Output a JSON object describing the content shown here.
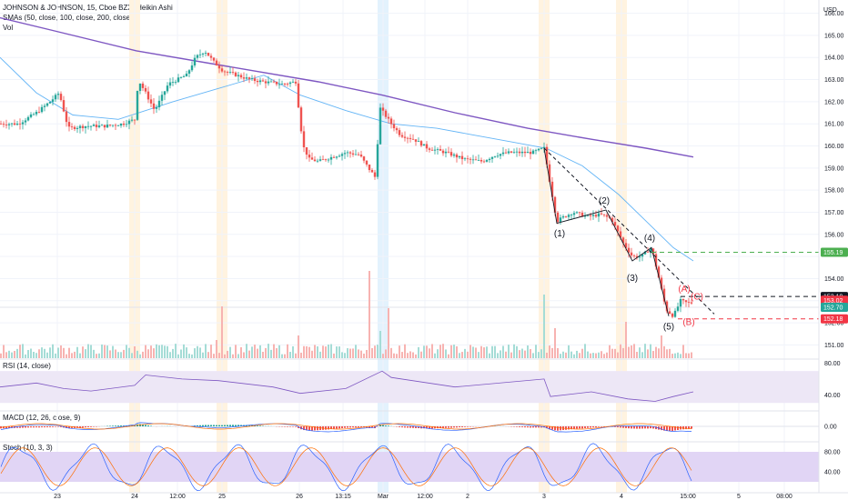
{
  "header": {
    "title": "JOHNSON & JOHNSON, 15, Cboe BZX, Heikin Ashi",
    "sma": "SMAs (50, close, 100, close, 200, close)",
    "vol": "Vol"
  },
  "currency": "USD",
  "indicators": {
    "rsi": "RSI (14, close)",
    "macd": "MACD (12, 26, close, 9)",
    "stoch": "Stoch (10, 3, 3)"
  },
  "colors": {
    "up": "#26a69a",
    "down": "#ef5350",
    "sma200": "#7e57c2",
    "sma50": "#64b5f6",
    "session_highlight": "#fff3e0",
    "rsi_band": "#ede7f6",
    "target": "#4caf50",
    "stop": "#f23645"
  },
  "chart_data": [
    {
      "type": "candlestick",
      "style": "Heikin Ashi",
      "ylim": [
        150.4,
        166.6
      ],
      "yticks": [
        151.0,
        152.0,
        153.0,
        154.0,
        155.0,
        156.0,
        157.0,
        158.0,
        159.0,
        160.0,
        161.0,
        162.0,
        163.0,
        164.0,
        165.0,
        166.0
      ],
      "xticks": [
        {
          "label": "23",
          "t": 63
        },
        {
          "label": "24",
          "t": 148
        },
        {
          "label": "12:00",
          "t": 195
        },
        {
          "label": "25",
          "t": 244
        },
        {
          "label": "26",
          "t": 329
        },
        {
          "label": "13:15",
          "t": 377
        },
        {
          "label": "Mar",
          "t": 421
        },
        {
          "label": "12:00",
          "t": 467
        },
        {
          "label": "2",
          "t": 514
        },
        {
          "label": "3",
          "t": 598
        },
        {
          "label": "4",
          "t": 683
        },
        {
          "label": "15:00",
          "t": 756
        },
        {
          "label": "5",
          "t": 812
        },
        {
          "label": "08:00",
          "t": 862
        }
      ],
      "close_anchors": [
        [
          0,
          161.0
        ],
        [
          20,
          161.0
        ],
        [
          40,
          161.5
        ],
        [
          55,
          162.0
        ],
        [
          65,
          162.4
        ],
        [
          75,
          160.8
        ],
        [
          95,
          160.9
        ],
        [
          115,
          160.9
        ],
        [
          135,
          161.0
        ],
        [
          148,
          161.2
        ],
        [
          152,
          163.0
        ],
        [
          160,
          162.4
        ],
        [
          170,
          161.6
        ],
        [
          185,
          162.8
        ],
        [
          205,
          163.2
        ],
        [
          215,
          164.0
        ],
        [
          225,
          164.3
        ],
        [
          235,
          163.8
        ],
        [
          245,
          163.4
        ],
        [
          260,
          163.2
        ],
        [
          275,
          163.0
        ],
        [
          290,
          162.9
        ],
        [
          310,
          162.8
        ],
        [
          325,
          162.9
        ],
        [
          333,
          160.0
        ],
        [
          340,
          159.4
        ],
        [
          350,
          159.3
        ],
        [
          365,
          159.5
        ],
        [
          380,
          159.7
        ],
        [
          395,
          159.6
        ],
        [
          405,
          159.0
        ],
        [
          412,
          158.6
        ],
        [
          418,
          161.7
        ],
        [
          430,
          161.0
        ],
        [
          440,
          160.5
        ],
        [
          455,
          160.3
        ],
        [
          470,
          159.9
        ],
        [
          490,
          159.7
        ],
        [
          510,
          159.4
        ],
        [
          530,
          159.3
        ],
        [
          545,
          159.6
        ],
        [
          560,
          159.7
        ],
        [
          585,
          159.7
        ],
        [
          598,
          159.9
        ],
        [
          605,
          158.2
        ],
        [
          612,
          156.6
        ],
        [
          620,
          156.8
        ],
        [
          630,
          157.0
        ],
        [
          645,
          156.8
        ],
        [
          660,
          156.9
        ],
        [
          672,
          156.7
        ],
        [
          685,
          155.6
        ],
        [
          695,
          155.0
        ],
        [
          705,
          155.0
        ],
        [
          716,
          155.4
        ],
        [
          722,
          154.4
        ],
        [
          732,
          152.6
        ],
        [
          740,
          152.3
        ],
        [
          748,
          153.0
        ],
        [
          755,
          152.9
        ],
        [
          762,
          152.9
        ]
      ],
      "last_price": 152.7,
      "sma_200": [
        [
          0,
          165.8
        ],
        [
          60,
          165.2
        ],
        [
          150,
          164.3
        ],
        [
          250,
          163.6
        ],
        [
          350,
          162.9
        ],
        [
          420,
          162.3
        ],
        [
          500,
          161.5
        ],
        [
          580,
          160.8
        ],
        [
          650,
          160.3
        ],
        [
          710,
          159.9
        ],
        [
          762,
          159.5
        ]
      ],
      "sma_50": [
        [
          0,
          164.0
        ],
        [
          40,
          162.4
        ],
        [
          80,
          161.4
        ],
        [
          130,
          161.2
        ],
        [
          190,
          162.0
        ],
        [
          240,
          162.6
        ],
        [
          290,
          163.2
        ],
        [
          330,
          162.3
        ],
        [
          380,
          161.6
        ],
        [
          430,
          161.0
        ],
        [
          480,
          160.8
        ],
        [
          520,
          160.5
        ],
        [
          560,
          160.2
        ],
        [
          600,
          159.9
        ],
        [
          640,
          159.1
        ],
        [
          680,
          157.8
        ],
        [
          710,
          156.6
        ],
        [
          740,
          155.4
        ],
        [
          762,
          154.8
        ]
      ],
      "volume_spikes": [
        [
          149,
          13
        ],
        [
          239,
          20
        ],
        [
          244,
          57
        ],
        [
          328,
          25
        ],
        [
          406,
          96
        ],
        [
          419,
          30
        ],
        [
          426,
          55
        ],
        [
          598,
          70
        ],
        [
          610,
          33
        ],
        [
          688,
          40
        ],
        [
          728,
          25
        ],
        [
          762,
          40
        ]
      ],
      "waves": [
        {
          "label": "(1)",
          "t": 615,
          "price": 155.9,
          "color": "#131722"
        },
        {
          "label": "(2)",
          "t": 664,
          "price": 157.4,
          "color": "#131722"
        },
        {
          "label": "(3)",
          "t": 695,
          "price": 153.9,
          "color": "#131722"
        },
        {
          "label": "(4)",
          "t": 714,
          "price": 155.7,
          "color": "#131722"
        },
        {
          "label": "(5)",
          "t": 735,
          "price": 151.7,
          "color": "#131722"
        },
        {
          "label": "(A)",
          "t": 752,
          "price": 153.4,
          "color": "#f23645"
        },
        {
          "label": "(B)",
          "t": 757,
          "price": 151.9,
          "color": "#f23645"
        },
        {
          "label": "(C)",
          "t": 766,
          "price": 153.05,
          "color": "#f23645"
        }
      ],
      "trendline": [
        [
          598,
          159.9
        ],
        [
          785,
          152.4
        ]
      ],
      "wave_path": [
        [
          598,
          159.9
        ],
        [
          612,
          156.5
        ],
        [
          666,
          157.1
        ],
        [
          695,
          154.8
        ],
        [
          716,
          155.4
        ],
        [
          735,
          152.3
        ]
      ],
      "levels": [
        {
          "label": "155.19",
          "price": 155.19,
          "from": 716,
          "color": "#4caf50",
          "dash": true
        },
        {
          "label": "153.19",
          "price": 153.19,
          "from": 748,
          "color": "#131722",
          "dash": true
        },
        {
          "label": "153.02",
          "price": 153.02,
          "from": null,
          "color": "#f23645",
          "dash": false
        },
        {
          "label": "152.70",
          "price": 152.7,
          "from": null,
          "color": "#26a69a",
          "dash": false
        },
        {
          "label": "152.18",
          "price": 152.18,
          "from": 745,
          "color": "#f23645",
          "dash": true
        }
      ]
    },
    {
      "type": "line",
      "name": "RSI (14, close)",
      "ylim": [
        20,
        85
      ],
      "yticks": [
        40.0,
        80.0
      ],
      "band": [
        30,
        70
      ],
      "values": [
        [
          0,
          50
        ],
        [
          40,
          55
        ],
        [
          70,
          48
        ],
        [
          100,
          45
        ],
        [
          148,
          52
        ],
        [
          160,
          65
        ],
        [
          200,
          60
        ],
        [
          240,
          58
        ],
        [
          300,
          50
        ],
        [
          330,
          42
        ],
        [
          380,
          48
        ],
        [
          420,
          70
        ],
        [
          430,
          62
        ],
        [
          500,
          50
        ],
        [
          598,
          60
        ],
        [
          605,
          38
        ],
        [
          650,
          44
        ],
        [
          690,
          35
        ],
        [
          720,
          32
        ],
        [
          740,
          38
        ],
        [
          762,
          44
        ]
      ]
    },
    {
      "type": "line",
      "name": "MACD (12, 26, close, 9)",
      "yticks": [
        0.0
      ],
      "values_note": "oscillates around 0 with histogram"
    },
    {
      "type": "line",
      "name": "Stoch (10, 3, 3)",
      "ylim": [
        0,
        100
      ],
      "yticks": [
        40.0,
        80.0
      ]
    }
  ]
}
